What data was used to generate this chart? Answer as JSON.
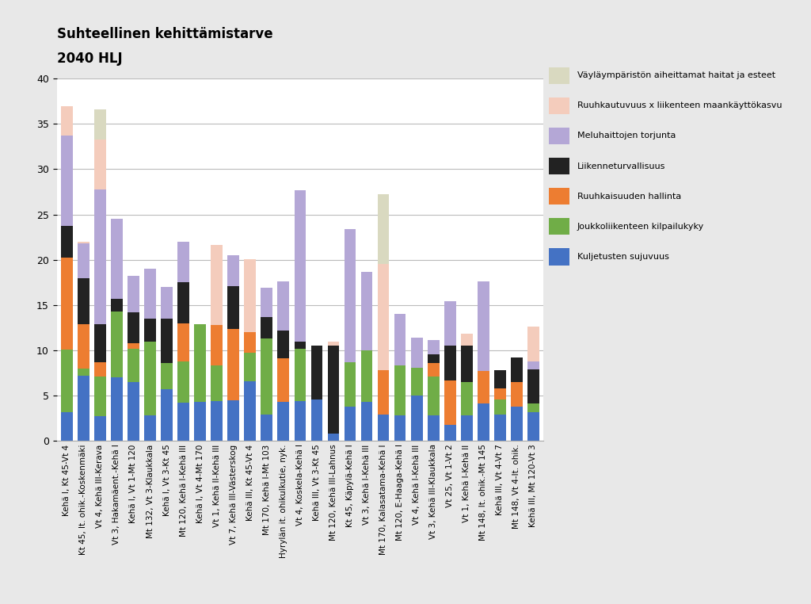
{
  "title_line1": "Suhteellinen kehittämistarve",
  "title_line2": "2040 HLJ",
  "categories": [
    "Kehä I, Kt 45-Vt 4",
    "Kt 45, It. ohik.-Koskenmäki",
    "Vt 4, Kehä III-Kerava",
    "Vt 3, Hakamäent.-Kehä I",
    "Kehä I, Vt 1-Mt 120",
    "Mt 132, Vt 3-Klaukkala",
    "Kehä I, Vt 3-Kt 45",
    "Mt 120, Kehä I-Kehä III",
    "Kehä I, Vt 4-Mt 170",
    "Vt 1, Kehä II-Kehä III",
    "Vt 7, Kehä III-Västerskog",
    "Kehä III, Kt 45-Vt 4",
    "Mt 170, Kehä I-Mt 103",
    "Hyrylän it. ohikulkutie, nyk.",
    "Vt 4, Koskela-Kehä I",
    "Kehä III, Vt 3-Kt 45",
    "Mt 120, Kehä III-Lahnus",
    "Kt 45, Käpylä-Kehä I",
    "Vt 3, Kehä I-Kehä III",
    "Mt 170, Kalasatama-Kehä I",
    "Mt 120, E-Haaga-Kehä I",
    "Vt 4, Kehä I-Kehä III",
    "Vt 3, Kehä III-Klaukkala",
    "Vt 25, Vt 1-Vt 2",
    "Vt 1, Kehä I-Kehä II",
    "Mt 148, It. ohik.-Mt 145",
    "Kehä III, Vt 4-Vt 7",
    "Mt 148, Vt 4-It. ohik.",
    "Kehä III, Mt 120-Vt 3"
  ],
  "series": {
    "Kuljetusten sujuvuus": [
      3.2,
      7.2,
      2.7,
      7.0,
      6.5,
      2.8,
      5.7,
      4.2,
      4.3,
      4.4,
      4.5,
      6.6,
      2.9,
      4.3,
      4.4,
      4.6,
      0.8,
      3.8,
      4.3,
      2.9,
      2.8,
      5.0,
      2.8,
      1.8,
      2.8,
      4.1,
      2.9,
      3.8,
      3.2
    ],
    "Joukkoliikenteen kilpailukyky": [
      6.9,
      0.8,
      4.4,
      7.3,
      3.7,
      8.2,
      2.9,
      4.6,
      8.6,
      3.9,
      0.0,
      3.1,
      8.4,
      0.0,
      5.8,
      0.0,
      0.0,
      4.9,
      5.7,
      0.0,
      5.5,
      3.1,
      4.3,
      0.0,
      3.7,
      0.0,
      1.7,
      0.0,
      0.9
    ],
    "Ruuhkaisuuden hallinta": [
      10.1,
      4.9,
      1.6,
      0.0,
      0.6,
      0.0,
      0.0,
      4.2,
      0.0,
      4.5,
      7.9,
      2.3,
      0.0,
      4.8,
      0.0,
      0.0,
      0.0,
      0.0,
      0.0,
      4.9,
      0.0,
      0.0,
      1.5,
      4.9,
      0.0,
      3.6,
      1.2,
      2.7,
      0.0
    ],
    "Liikenneturvallisuus": [
      3.5,
      5.1,
      4.2,
      1.4,
      3.4,
      2.5,
      4.9,
      4.5,
      0.0,
      0.0,
      4.7,
      0.0,
      2.4,
      3.1,
      0.8,
      5.9,
      9.7,
      0.0,
      0.0,
      0.0,
      0.0,
      0.0,
      1.0,
      3.8,
      4.0,
      0.0,
      2.0,
      2.7,
      3.8
    ],
    "Meluhaittojen torjunta": [
      10.0,
      3.8,
      14.9,
      8.8,
      4.0,
      5.5,
      3.5,
      4.5,
      0.0,
      0.0,
      3.4,
      0.0,
      3.2,
      5.4,
      16.7,
      0.0,
      0.0,
      14.7,
      8.7,
      0.0,
      5.7,
      3.3,
      1.5,
      4.9,
      0.0,
      9.9,
      0.0,
      0.0,
      0.9
    ],
    "Ruuhkautuvuus x liikenteen maankäyttökasvu": [
      3.2,
      0.2,
      5.5,
      0.0,
      0.0,
      0.0,
      0.0,
      0.0,
      0.0,
      8.8,
      0.0,
      8.1,
      0.0,
      0.0,
      0.0,
      0.0,
      0.5,
      0.0,
      0.0,
      11.7,
      0.0,
      0.0,
      0.0,
      0.0,
      1.3,
      0.0,
      0.0,
      0.0,
      3.8
    ],
    "Väyläympäristön aiheittamat haitat ja esteet": [
      0.0,
      0.0,
      3.3,
      0.0,
      0.0,
      0.0,
      0.0,
      0.0,
      0.0,
      0.0,
      0.0,
      0.0,
      0.0,
      0.0,
      0.0,
      0.0,
      0.0,
      0.0,
      0.0,
      7.7,
      0.0,
      0.0,
      0.0,
      0.0,
      0.0,
      0.0,
      0.0,
      0.0,
      0.0
    ]
  },
  "colors": {
    "Kuljetusten sujuvuus": "#4472C4",
    "Joukkoliikenteen kilpailukyky": "#70AD47",
    "Ruuhkaisuuden hallinta": "#ED7D31",
    "Liikenneturvallisuus": "#222222",
    "Meluhaittojen torjunta": "#B4A7D6",
    "Ruuhkautuvuus x liikenteen maankäyttökasvu": "#F4CCBC",
    "Väyläympäristön aiheittamat haitat ja esteet": "#D9D9C0"
  },
  "ylim": [
    0,
    40
  ],
  "yticks": [
    0,
    5,
    10,
    15,
    20,
    25,
    30,
    35,
    40
  ],
  "background_color": "#E8E8E8",
  "plot_bg_color": "#FFFFFF"
}
